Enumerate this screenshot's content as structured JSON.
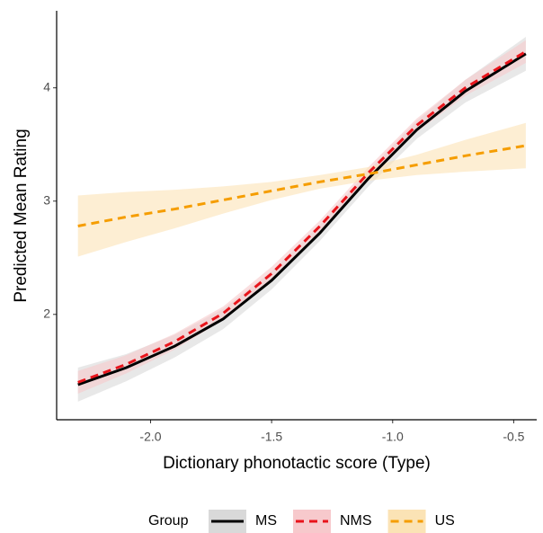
{
  "chart_data": {
    "type": "line",
    "xlabel": "Dictionary phonotactic score (Type)",
    "ylabel": "Predicted Mean Rating",
    "legend_title": "Group",
    "x": [
      -2.3,
      -2.1,
      -1.9,
      -1.7,
      -1.5,
      -1.3,
      -1.1,
      -0.9,
      -0.7,
      -0.45
    ],
    "xlim": [
      -2.388,
      -0.405
    ],
    "ylim": [
      1.07,
      4.68
    ],
    "xticks": [
      {
        "value": -2,
        "label": "-2.0"
      },
      {
        "value": -1.5,
        "label": "-1.5"
      },
      {
        "value": -1,
        "label": "-1.0"
      },
      {
        "value": -0.5,
        "label": "-0.5"
      }
    ],
    "yticks": [
      2,
      3,
      4
    ],
    "series": [
      {
        "name": "MS",
        "color": "#000000",
        "band_color": "#d9d9d9",
        "dash": false,
        "values": [
          1.38,
          1.53,
          1.72,
          1.96,
          2.3,
          2.72,
          3.2,
          3.63,
          3.97,
          4.3
        ],
        "lower": [
          1.23,
          1.41,
          1.62,
          1.87,
          2.22,
          2.65,
          3.13,
          3.55,
          3.87,
          4.15
        ],
        "upper": [
          1.53,
          1.65,
          1.82,
          2.05,
          2.38,
          2.79,
          3.27,
          3.71,
          4.07,
          4.45
        ]
      },
      {
        "name": "NMS",
        "color": "#e8141b",
        "band_color": "#f7c9cc",
        "dash": true,
        "values": [
          1.4,
          1.56,
          1.76,
          2.01,
          2.36,
          2.78,
          3.25,
          3.67,
          4.0,
          4.32
        ],
        "lower": [
          1.3,
          1.48,
          1.69,
          1.95,
          2.3,
          2.73,
          3.2,
          3.61,
          3.93,
          4.22
        ],
        "upper": [
          1.5,
          1.64,
          1.83,
          2.07,
          2.42,
          2.83,
          3.3,
          3.73,
          4.07,
          4.42
        ]
      },
      {
        "name": "US",
        "color": "#f59d00",
        "band_color": "#fbe3b5",
        "dash": true,
        "values": [
          2.78,
          2.86,
          2.93,
          3.01,
          3.09,
          3.17,
          3.24,
          3.32,
          3.4,
          3.49
        ],
        "lower": [
          2.51,
          2.64,
          2.76,
          2.89,
          3.01,
          3.11,
          3.18,
          3.23,
          3.26,
          3.29
        ],
        "upper": [
          3.05,
          3.08,
          3.1,
          3.13,
          3.17,
          3.23,
          3.3,
          3.41,
          3.54,
          3.69
        ]
      }
    ]
  }
}
